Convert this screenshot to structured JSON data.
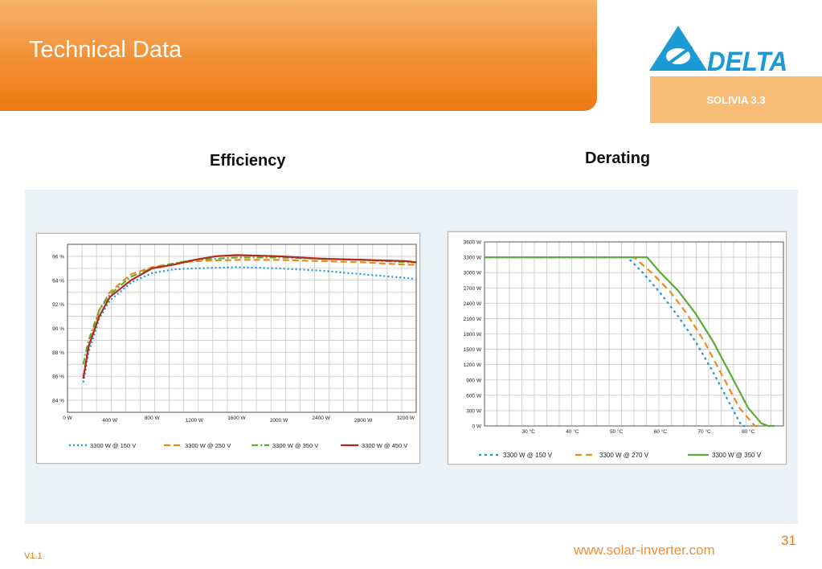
{
  "header": {
    "title": "Technical Data"
  },
  "logo": {
    "text": "DELTA"
  },
  "product": {
    "name": "SOLIVIA 3.3"
  },
  "sections": {
    "efficiency_title": "Efficiency",
    "derating_title": "Derating"
  },
  "footer": {
    "page_number": "31",
    "url": "www.solar-inverter.com",
    "version": "V1.1"
  },
  "colors": {
    "orange": "#ee7a12",
    "light_orange": "#f7bd77",
    "blue": "#1a9bd7",
    "green": "#5aac3a",
    "dark_red": "#b22a1e",
    "panel": "#eaf2f7"
  },
  "chart_data": [
    {
      "type": "line",
      "title": "Efficiency",
      "xlabel": "",
      "ylabel": "",
      "xlim": [
        0,
        3300
      ],
      "ylim": [
        83,
        97
      ],
      "x_ticks": [
        0,
        400,
        800,
        1200,
        1600,
        2000,
        2400,
        2800,
        3200
      ],
      "x_tick_labels": [
        "0 W",
        "400 W",
        "800 W",
        "1200 W",
        "1600 W",
        "2000 W",
        "2400 W",
        "2800 W",
        "3200 W"
      ],
      "y_ticks": [
        84,
        86,
        88,
        90,
        92,
        94,
        96
      ],
      "y_tick_labels": [
        "84 %",
        "86 %",
        "88 %",
        "90 %",
        "92 %",
        "94 %",
        "96 %"
      ],
      "grid": true,
      "legend_position": "bottom",
      "series": [
        {
          "name": "3300 W @ 150 V",
          "color": "#1a9bd7",
          "dash": "2,3",
          "x": [
            150,
            200,
            300,
            400,
            600,
            800,
            1000,
            1200,
            1600,
            2000,
            2400,
            2800,
            3200,
            3300
          ],
          "y": [
            85.5,
            88,
            90.8,
            92.3,
            93.8,
            94.6,
            94.9,
            95.0,
            95.1,
            95.0,
            94.8,
            94.5,
            94.2,
            94.1
          ]
        },
        {
          "name": "3300 W @ 250 V",
          "color": "#ee8a1a",
          "dash": "8,4",
          "x": [
            150,
            200,
            300,
            400,
            600,
            800,
            1000,
            1200,
            1600,
            2000,
            2400,
            2800,
            3200,
            3300
          ],
          "y": [
            86.0,
            88.5,
            91.5,
            93.0,
            94.5,
            95.1,
            95.4,
            95.6,
            95.7,
            95.7,
            95.6,
            95.5,
            95.3,
            95.3
          ]
        },
        {
          "name": "3300 W @ 350 V",
          "color": "#5aac3a",
          "dash": "8,3,2,3",
          "x": [
            150,
            200,
            300,
            400,
            600,
            800,
            1000,
            1200,
            1600,
            2000,
            2400,
            2800,
            3200,
            3300
          ],
          "y": [
            87.0,
            89.0,
            91.5,
            92.8,
            94.3,
            95.0,
            95.4,
            95.7,
            95.9,
            95.9,
            95.8,
            95.7,
            95.5,
            95.5
          ]
        },
        {
          "name": "3300 W @ 450 V",
          "color": "#b22a1e",
          "dash": "",
          "x": [
            150,
            200,
            300,
            400,
            600,
            800,
            1000,
            1200,
            1400,
            1600,
            2000,
            2400,
            2800,
            3200,
            3300
          ],
          "y": [
            85.8,
            88.5,
            91.0,
            92.6,
            94.0,
            95.0,
            95.3,
            95.7,
            96.0,
            96.1,
            96.0,
            95.8,
            95.7,
            95.6,
            95.5
          ]
        }
      ]
    },
    {
      "type": "line",
      "title": "Derating",
      "xlabel": "",
      "ylabel": "",
      "xlim": [
        20,
        88
      ],
      "ylim": [
        0,
        3600
      ],
      "x_ticks": [
        30,
        40,
        50,
        60,
        70,
        80
      ],
      "x_tick_labels": [
        "30 °C",
        "40 °C",
        "50 °C",
        "60 °C",
        "70 °C",
        "80 °C"
      ],
      "y_ticks": [
        0,
        300,
        600,
        900,
        1200,
        1500,
        1800,
        2100,
        2400,
        2700,
        3000,
        3300,
        3600
      ],
      "y_tick_labels": [
        "0 W",
        "300 W",
        "600 W",
        "900 W",
        "1200 W",
        "1500 W",
        "1800 W",
        "2100 W",
        "2400 W",
        "2700 W",
        "3000 W",
        "3300 W",
        "3600 W"
      ],
      "grid": true,
      "legend_position": "bottom",
      "series": [
        {
          "name": "3300 W @ 150 V",
          "color": "#1a9bd7",
          "dash": "3,4",
          "x": [
            20,
            52.5,
            56,
            60,
            64,
            68,
            72,
            76,
            78.5,
            79.5
          ],
          "y": [
            3300,
            3300,
            3000,
            2600,
            2150,
            1650,
            1050,
            400,
            0,
            0
          ]
        },
        {
          "name": "3300 W @ 270 V",
          "color": "#ee8a1a",
          "dash": "8,5",
          "x": [
            20,
            54,
            58,
            62,
            66,
            70,
            74,
            78,
            81.5,
            82.5
          ],
          "y": [
            3300,
            3300,
            3000,
            2650,
            2200,
            1650,
            1000,
            350,
            0,
            0
          ]
        },
        {
          "name": "3300 W @ 350 V",
          "color": "#5aac3a",
          "dash": "",
          "x": [
            20,
            57,
            60,
            64,
            68,
            72,
            76,
            80,
            83,
            84.5,
            86
          ],
          "y": [
            3300,
            3300,
            3000,
            2650,
            2200,
            1650,
            1000,
            350,
            50,
            0,
            0
          ]
        }
      ]
    }
  ]
}
